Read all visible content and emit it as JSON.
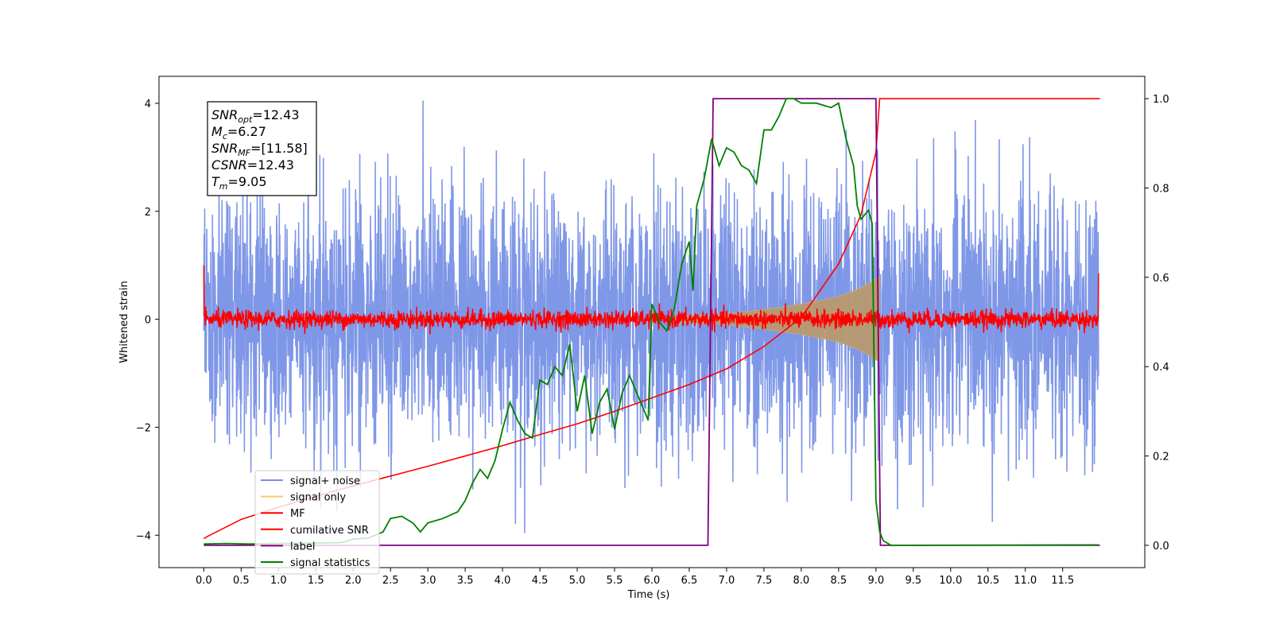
{
  "chart_data": {
    "type": "line",
    "xlabel": "Time (s)",
    "ylabel": "Whitened strain",
    "xlim": [
      -0.6,
      12.6
    ],
    "ylim_left": [
      -4.6,
      4.5
    ],
    "ylim_right": [
      -0.05,
      1.05
    ],
    "xticks": [
      "0.0",
      "0.5",
      "1.0",
      "1.5",
      "2.0",
      "2.5",
      "3.0",
      "3.5",
      "4.0",
      "4.5",
      "5.0",
      "5.5",
      "6.0",
      "6.5",
      "7.0",
      "7.5",
      "8.0",
      "8.5",
      "9.0",
      "9.5",
      "10.0",
      "10.5",
      "11.0",
      "11.5"
    ],
    "yticks_left": [
      "−4",
      "−2",
      "0",
      "2",
      "4"
    ],
    "yticks_right": [
      "0.0",
      "0.2",
      "0.4",
      "0.6",
      "0.8",
      "1.0"
    ],
    "annotation_lines": [
      {
        "main": "SNR",
        "sub": "opt",
        "rest": "=12.43"
      },
      {
        "main": "M",
        "sub": "c",
        "rest": "=6.27"
      },
      {
        "main": "SNR",
        "sub": "MF",
        "rest": "=[11.58]"
      },
      {
        "main": "CSNR",
        "sub": "",
        "rest": "=12.43"
      },
      {
        "main": "T",
        "sub": "m",
        "rest": "=9.05"
      }
    ],
    "legend": {
      "placement": "lower-left",
      "entries": [
        {
          "label": "signal+ noise",
          "color": "#7891e6"
        },
        {
          "label": "signal only",
          "color": "#f7c873"
        },
        {
          "label": "MF",
          "color": "#ff0000"
        },
        {
          "label": "cumilative SNR",
          "color": "#ff0000"
        },
        {
          "label": "label",
          "color": "#800080"
        },
        {
          "label": "signal statistics",
          "color": "#008000"
        }
      ]
    },
    "noise": {
      "t_start": 0.0,
      "t_end": 11.98,
      "envelope_mean": 0.0,
      "envelope_spread": 1.8,
      "max_abs": 4.05
    },
    "signal_only": {
      "t_start": 6.3,
      "t_end": 9.05,
      "envelope_t": [
        6.3,
        7.0,
        7.5,
        8.0,
        8.5,
        8.8,
        9.0,
        9.05
      ],
      "envelope_amp": [
        0.05,
        0.1,
        0.18,
        0.28,
        0.42,
        0.58,
        0.75,
        0.8
      ]
    },
    "mf": {
      "t_start": 0.0,
      "t_end": 11.98,
      "typical_amp": 0.15,
      "start_value": 1.0,
      "end_value": 0.85
    },
    "cumulative_snr": {
      "axis": "right",
      "x": [
        0.0,
        0.05,
        0.5,
        1.0,
        1.5,
        2.0,
        2.5,
        3.0,
        3.5,
        4.0,
        4.5,
        5.0,
        5.5,
        6.0,
        6.5,
        7.0,
        7.5,
        8.0,
        8.5,
        8.8,
        9.0,
        9.05,
        12.0
      ],
      "y": [
        0.015,
        0.02,
        0.058,
        0.085,
        0.11,
        0.133,
        0.155,
        0.177,
        0.2,
        0.223,
        0.248,
        0.272,
        0.3,
        0.33,
        0.36,
        0.395,
        0.445,
        0.51,
        0.63,
        0.74,
        0.88,
        1.0,
        1.0
      ]
    },
    "label": {
      "axis": "right",
      "x": [
        0.0,
        6.75,
        6.82,
        9.0,
        9.06,
        12.0
      ],
      "y": [
        0.0,
        0.0,
        1.0,
        1.0,
        0.0,
        0.0
      ]
    },
    "signal_statistics": {
      "axis": "right",
      "x": [
        0.0,
        0.3,
        0.6,
        1.0,
        1.5,
        1.85,
        2.0,
        2.2,
        2.4,
        2.5,
        2.65,
        2.8,
        2.9,
        3.0,
        3.2,
        3.4,
        3.5,
        3.6,
        3.7,
        3.8,
        3.9,
        4.0,
        4.1,
        4.2,
        4.3,
        4.4,
        4.5,
        4.6,
        4.7,
        4.8,
        4.9,
        5.0,
        5.1,
        5.2,
        5.3,
        5.4,
        5.5,
        5.6,
        5.7,
        5.8,
        5.9,
        5.95,
        6.0,
        6.1,
        6.2,
        6.3,
        6.4,
        6.5,
        6.55,
        6.6,
        6.7,
        6.8,
        6.9,
        7.0,
        7.1,
        7.2,
        7.3,
        7.4,
        7.5,
        7.6,
        7.7,
        7.8,
        7.9,
        8.0,
        8.2,
        8.4,
        8.5,
        8.6,
        8.7,
        8.75,
        8.8,
        8.9,
        8.95,
        9.0,
        9.05,
        9.1,
        9.2,
        9.3,
        11.98
      ],
      "y": [
        0.003,
        0.004,
        0.003,
        0.004,
        0.005,
        0.006,
        0.014,
        0.016,
        0.03,
        0.06,
        0.065,
        0.05,
        0.03,
        0.05,
        0.06,
        0.075,
        0.1,
        0.14,
        0.17,
        0.15,
        0.19,
        0.26,
        0.32,
        0.28,
        0.25,
        0.24,
        0.37,
        0.36,
        0.4,
        0.38,
        0.45,
        0.3,
        0.38,
        0.25,
        0.32,
        0.35,
        0.26,
        0.34,
        0.38,
        0.34,
        0.3,
        0.28,
        0.54,
        0.5,
        0.48,
        0.53,
        0.63,
        0.68,
        0.57,
        0.76,
        0.82,
        0.91,
        0.85,
        0.89,
        0.88,
        0.85,
        0.84,
        0.81,
        0.93,
        0.93,
        0.96,
        1.0,
        1.0,
        0.99,
        0.99,
        0.98,
        0.99,
        0.91,
        0.85,
        0.76,
        0.73,
        0.75,
        0.72,
        0.1,
        0.03,
        0.01,
        0.0,
        0.0,
        0.001
      ]
    }
  }
}
